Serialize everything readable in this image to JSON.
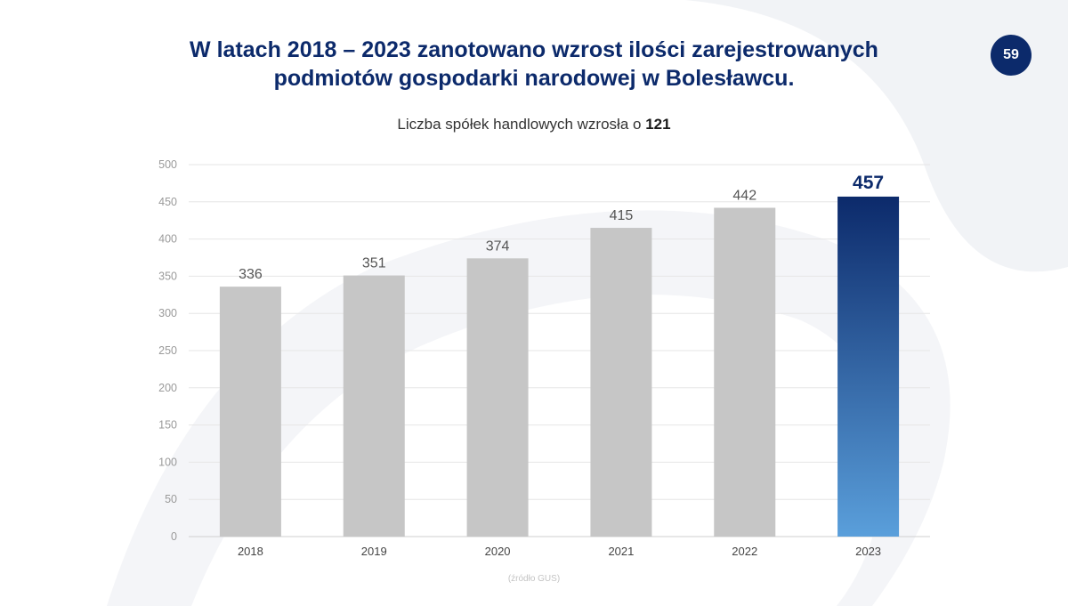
{
  "page_number": "59",
  "title_lines": [
    "W latach 2018 – 2023 zanotowano wzrost ilości zarejestrowanych",
    "podmiotów gospodarki  narodowej w Bolesławcu."
  ],
  "subtitle_prefix": "Liczba spółek handlowych wzrosła o ",
  "subtitle_value": "121",
  "source_note": "(źródło GUS)",
  "colors": {
    "title": "#0c2a6b",
    "bar": "#c6c6c6",
    "highlight_top": "#0c2a6b",
    "highlight_bottom": "#5a9fdb"
  },
  "chart_data": {
    "type": "bar",
    "categories": [
      "2018",
      "2019",
      "2020",
      "2021",
      "2022",
      "2023"
    ],
    "values": [
      336,
      351,
      374,
      415,
      442,
      457
    ],
    "value_labels": [
      "336",
      "351",
      "374",
      "415",
      "442",
      "457"
    ],
    "highlight_index": 5,
    "ylim": [
      0,
      500
    ],
    "yticks": [
      0,
      50,
      100,
      150,
      200,
      250,
      300,
      350,
      400,
      450,
      500
    ],
    "grid": true,
    "legend": "none"
  }
}
